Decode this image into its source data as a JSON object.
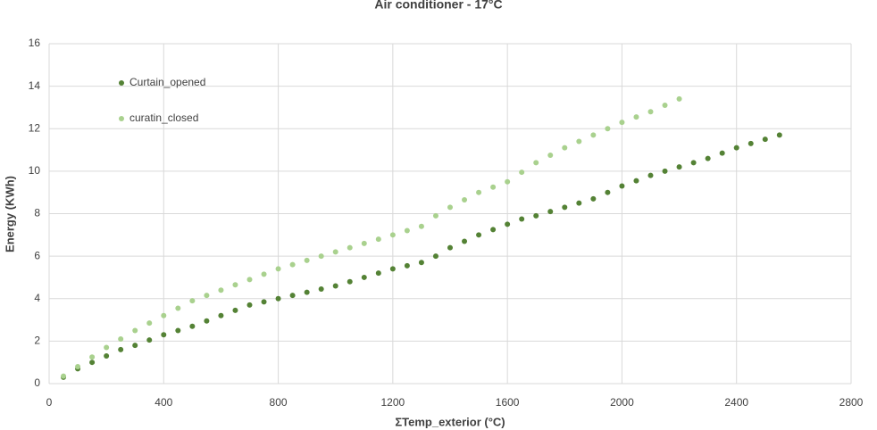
{
  "chart_data": {
    "type": "scatter",
    "title": "Air conditioner - 17°C",
    "x_label": "ΣTemp_exterior (°C)",
    "y_label": "Energy (KWh)",
    "xlim": [
      0,
      2800
    ],
    "xticks": [
      0,
      400,
      800,
      1200,
      1600,
      2000,
      2400,
      2800
    ],
    "ylim": [
      0,
      16
    ],
    "yticks": [
      0,
      2,
      4,
      6,
      8,
      10,
      12,
      14,
      16
    ],
    "grid": true,
    "legend": "upper left",
    "series": [
      {
        "name": "Curtain_opened",
        "color": "#548235",
        "x": [
          50,
          100,
          150,
          200,
          250,
          300,
          350,
          400,
          450,
          500,
          550,
          600,
          650,
          700,
          750,
          800,
          850,
          900,
          950,
          1000,
          1050,
          1100,
          1150,
          1200,
          1250,
          1300,
          1350,
          1400,
          1450,
          1500,
          1550,
          1600,
          1650,
          1700,
          1750,
          1800,
          1850,
          1900,
          1950,
          2000,
          2050,
          2100,
          2150,
          2200,
          2250,
          2300,
          2350,
          2400,
          2450,
          2500,
          2550
        ],
        "values": [
          0.3,
          0.7,
          1.0,
          1.3,
          1.6,
          1.8,
          2.05,
          2.3,
          2.5,
          2.7,
          2.95,
          3.2,
          3.45,
          3.7,
          3.85,
          4.0,
          4.15,
          4.3,
          4.45,
          4.6,
          4.8,
          5.0,
          5.2,
          5.4,
          5.55,
          5.7,
          6.0,
          6.4,
          6.7,
          7.0,
          7.25,
          7.5,
          7.75,
          7.9,
          8.1,
          8.3,
          8.5,
          8.7,
          9.0,
          9.3,
          9.55,
          9.8,
          10.0,
          10.2,
          10.4,
          10.6,
          10.85,
          11.1,
          11.3,
          11.5,
          11.7
        ]
      },
      {
        "name": "curatin_closed",
        "color": "#a9d18e",
        "x": [
          50,
          100,
          150,
          200,
          250,
          300,
          350,
          400,
          450,
          500,
          550,
          600,
          650,
          700,
          750,
          800,
          850,
          900,
          950,
          1000,
          1050,
          1100,
          1150,
          1200,
          1250,
          1300,
          1350,
          1400,
          1450,
          1500,
          1550,
          1600,
          1650,
          1700,
          1750,
          1800,
          1850,
          1900,
          1950,
          2000,
          2050,
          2100,
          2150,
          2200
        ],
        "values": [
          0.35,
          0.8,
          1.25,
          1.7,
          2.1,
          2.5,
          2.85,
          3.2,
          3.55,
          3.9,
          4.15,
          4.4,
          4.65,
          4.9,
          5.15,
          5.4,
          5.6,
          5.8,
          6.0,
          6.2,
          6.4,
          6.6,
          6.8,
          7.0,
          7.2,
          7.4,
          7.9,
          8.3,
          8.65,
          9.0,
          9.25,
          9.5,
          9.95,
          10.4,
          10.75,
          11.1,
          11.4,
          11.7,
          12.0,
          12.3,
          12.55,
          12.8,
          13.1,
          13.4
        ]
      }
    ]
  }
}
